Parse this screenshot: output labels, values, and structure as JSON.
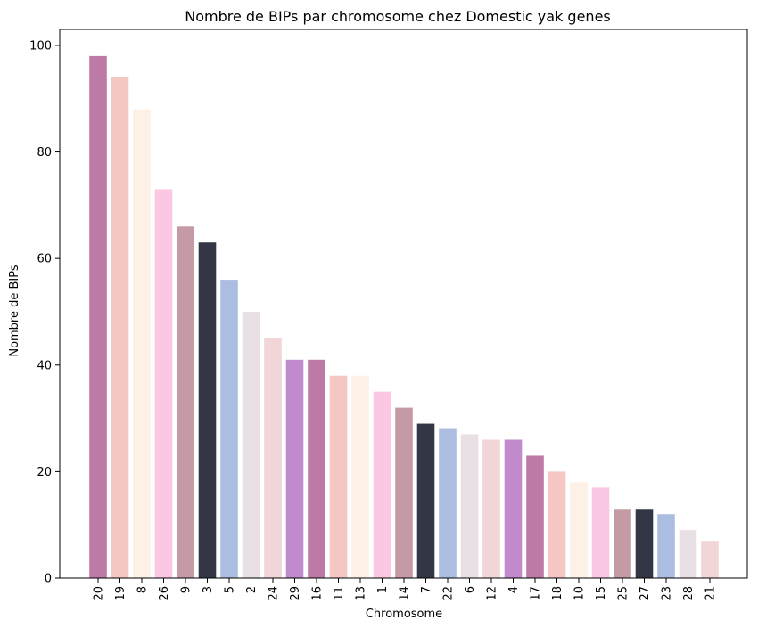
{
  "chart_data": {
    "type": "bar",
    "title": "Nombre de BIPs par chromosome chez Domestic yak genes",
    "xlabel": "Chromosome",
    "ylabel": "Nombre de BIPs",
    "ylim": [
      0,
      103
    ],
    "yticks": [
      0,
      20,
      40,
      60,
      80,
      100
    ],
    "grid": false,
    "categories": [
      "20",
      "19",
      "8",
      "26",
      "9",
      "3",
      "5",
      "2",
      "24",
      "29",
      "16",
      "11",
      "13",
      "1",
      "14",
      "7",
      "22",
      "6",
      "12",
      "4",
      "17",
      "18",
      "10",
      "15",
      "25",
      "27",
      "23",
      "28",
      "21"
    ],
    "values": [
      98,
      94,
      88,
      73,
      66,
      63,
      56,
      50,
      45,
      41,
      41,
      38,
      38,
      35,
      32,
      29,
      28,
      27,
      26,
      26,
      23,
      20,
      18,
      17,
      13,
      13,
      12,
      9,
      7
    ],
    "colors": [
      "#be7aa6",
      "#f5c7c2",
      "#fdf0e6",
      "#fcc7e3",
      "#c49aa5",
      "#323645",
      "#abbde0",
      "#e9e0e5",
      "#f2d5d7",
      "#c08acd",
      "#be7aa6",
      "#f5c7c2",
      "#fdf0e6",
      "#fcc7e3",
      "#c49aa5",
      "#323645",
      "#abbde0",
      "#e9e0e5",
      "#f2d5d7",
      "#c08acd",
      "#be7aa6",
      "#f5c7c2",
      "#fdf0e6",
      "#fcc7e3",
      "#c49aa5",
      "#323645",
      "#abbde0",
      "#e9e0e5",
      "#f2d5d7"
    ]
  }
}
